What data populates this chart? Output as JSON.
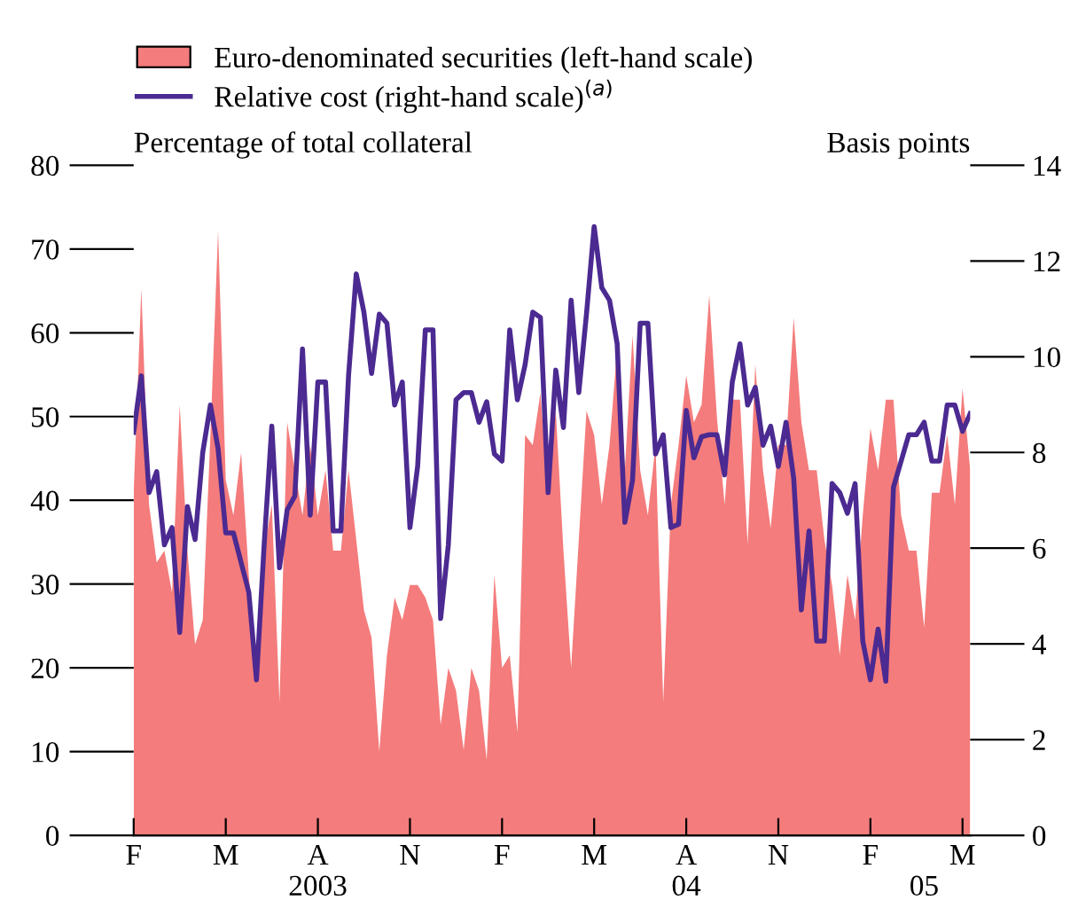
{
  "chart_data": {
    "type": "area",
    "ylabel": "Percentage of total collateral",
    "y2label": "Basis points",
    "ylim": [
      0,
      80
    ],
    "yticks": [
      0,
      10,
      20,
      30,
      40,
      50,
      60,
      70,
      80
    ],
    "y2lim": [
      0,
      14
    ],
    "y2ticks": [
      0,
      2,
      4,
      6,
      8,
      10,
      12,
      14
    ],
    "categories": [
      "F",
      null,
      null,
      null,
      null,
      null,
      null,
      null,
      null,
      null,
      null,
      null,
      "M",
      null,
      null,
      null,
      null,
      null,
      null,
      null,
      null,
      null,
      null,
      null,
      "A\n2003",
      null,
      null,
      null,
      null,
      null,
      null,
      null,
      null,
      null,
      null,
      null,
      "N",
      null,
      null,
      null,
      null,
      null,
      null,
      null,
      null,
      null,
      null,
      null,
      "F",
      null,
      null,
      null,
      null,
      null,
      null,
      null,
      null,
      null,
      null,
      null,
      "M",
      null,
      null,
      null,
      null,
      null,
      null,
      null,
      null,
      null,
      null,
      null,
      "A\n04",
      null,
      null,
      null,
      null,
      null,
      null,
      null,
      null,
      null,
      null,
      null,
      "N",
      null,
      null,
      null,
      null,
      null,
      null,
      null,
      null,
      null,
      null,
      null,
      "F",
      null,
      null,
      null,
      null,
      null,
      null,
      "\n05",
      null,
      null,
      null,
      null,
      "M",
      null
    ],
    "grid": false,
    "legend": "top left",
    "series": [
      {
        "name": "Euro-denominated securities (left-hand scale)",
        "color": "#f47c7c",
        "values": [
          40.9,
          65.3,
          39.5,
          32.6,
          34.0,
          29.0,
          51.4,
          34.0,
          22.8,
          25.7,
          47.8,
          72.2,
          42.4,
          38.2,
          45.7,
          31.1,
          20.0,
          34.0,
          39.5,
          15.9,
          49.3,
          43.6,
          38.2,
          46.6,
          38.2,
          43.6,
          34.0,
          34.0,
          43.6,
          35.3,
          26.9,
          23.6,
          10.0,
          21.5,
          28.4,
          25.7,
          29.9,
          29.9,
          28.4,
          25.7,
          13.2,
          20.0,
          17.3,
          10.2,
          20.0,
          17.3,
          9.0,
          31.1,
          20.0,
          21.5,
          12.3,
          47.8,
          46.6,
          52.8,
          40.9,
          50.7,
          34.0,
          20.0,
          35.3,
          50.7,
          47.8,
          39.5,
          46.6,
          58.2,
          43.6,
          59.7,
          43.6,
          38.2,
          46.6,
          15.9,
          39.5,
          46.6,
          54.9,
          49.3,
          51.4,
          64.5,
          49.9,
          39.5,
          52.0,
          52.0,
          34.7,
          56.2,
          43.6,
          36.7,
          46.6,
          46.6,
          61.8,
          49.3,
          43.6,
          43.6,
          35.3,
          29.9,
          21.5,
          31.1,
          25.7,
          38.2,
          48.6,
          43.6,
          52.0,
          52.0,
          38.2,
          34.0,
          34.0,
          24.8,
          40.9,
          40.9,
          47.8,
          39.5,
          53.4,
          43.6
        ]
      },
      {
        "name": "Relative cost (right-hand scale)$^{(a)}$",
        "type": "line",
        "axis": "y2",
        "color": "#4b2a91",
        "values": [
          8.42,
          9.6,
          7.16,
          7.6,
          6.07,
          6.43,
          4.24,
          6.87,
          6.18,
          8.0,
          8.99,
          8.08,
          6.32,
          6.32,
          5.7,
          5.08,
          3.25,
          6.07,
          8.55,
          5.59,
          6.8,
          7.09,
          10.16,
          6.69,
          9.47,
          9.47,
          6.36,
          6.36,
          9.61,
          11.73,
          10.93,
          9.65,
          10.89,
          10.7,
          8.99,
          9.47,
          6.43,
          7.71,
          10.56,
          10.56,
          4.53,
          6.07,
          9.1,
          9.25,
          9.25,
          8.63,
          9.06,
          7.97,
          7.82,
          10.56,
          9.1,
          9.83,
          10.93,
          10.82,
          7.16,
          9.72,
          8.52,
          11.18,
          9.25,
          10.89,
          12.72,
          11.44,
          11.18,
          10.27,
          6.54,
          7.42,
          10.7,
          10.7,
          7.97,
          8.37,
          6.43,
          6.5,
          8.88,
          7.89,
          8.33,
          8.37,
          8.37,
          7.53,
          9.47,
          10.27,
          8.99,
          9.36,
          8.15,
          8.55,
          7.71,
          8.63,
          7.46,
          4.71,
          6.36,
          4.06,
          4.06,
          7.35,
          7.16,
          6.73,
          7.35,
          4.06,
          3.25,
          4.31,
          3.22,
          7.27,
          7.82,
          8.37,
          8.37,
          8.63,
          7.82,
          7.82,
          8.99,
          8.99,
          8.44,
          8.81
        ]
      }
    ]
  }
}
